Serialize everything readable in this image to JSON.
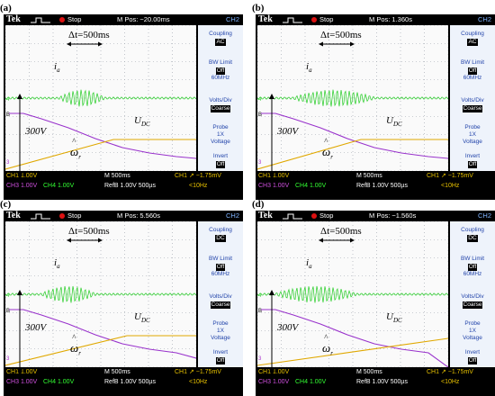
{
  "common": {
    "brand": "Tek",
    "status": "Stop",
    "ch2_header": "CH2",
    "side_menu": {
      "coupling_label": "Coupling",
      "bwlimit_label": "BW Limit",
      "bwlimit_value": "Off",
      "bwlimit_sub": "60MHz",
      "voltsdiv_label": "Volts/Div",
      "voltsdiv_value": "Coarse",
      "probe_label": "Probe",
      "probe_sub1": "1X",
      "probe_sub2": "Voltage",
      "invert_label": "Invert",
      "invert_value": "Off"
    },
    "bottom": {
      "ch1": "CH1  1.00V",
      "ch3": "CH3  1.00V",
      "ch4": "CH4  1.00V",
      "m": "M 500ms",
      "refb": "RefB 1.00V 500µs",
      "trig": "CH1 ↗ −1.75mV",
      "freq": "<10Hz"
    },
    "annotations": {
      "delta_t": "Δt=500ms",
      "ia": "i",
      "ia_sub": "a",
      "udc": "U",
      "udc_sub": "DC",
      "voltage": "300V",
      "omega": "ω",
      "omega_sub": "r"
    }
  },
  "panels": [
    {
      "label": "(a)",
      "mpos": "M Pos: −20.00ms",
      "coupling": "AC"
    },
    {
      "label": "(b)",
      "mpos": "M Pos: 1.360s",
      "coupling": "AC"
    },
    {
      "label": "(c)",
      "mpos": "M Pos: 5.560s",
      "coupling": "DC"
    },
    {
      "label": "(d)",
      "mpos": "M Pos: −1.560s",
      "coupling": "DC"
    }
  ],
  "colors": {
    "current": "#22cc22",
    "udc": "#9933cc",
    "speed": "#e0a800",
    "grid": "#9aa0aa"
  }
}
